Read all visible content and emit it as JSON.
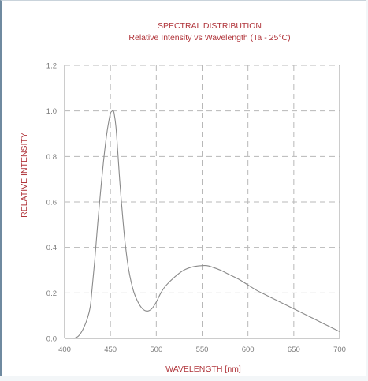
{
  "chart_data": {
    "type": "line",
    "title": "SPECTRAL DISTRIBUTION",
    "subtitle": "Relative Intensity vs Wavelength (Ta - 25°C)",
    "xlabel": "WAVELENGTH [nm]",
    "ylabel": "RELATIVE INTENSITY",
    "xlim": [
      400,
      700
    ],
    "ylim": [
      0,
      1.2
    ],
    "x_ticks": [
      "400",
      "450",
      "500",
      "550",
      "600",
      "650",
      "700"
    ],
    "y_ticks": [
      "0.0",
      "0.2",
      "0.4",
      "0.6",
      "0.8",
      "1.0",
      "1.2"
    ],
    "grid": true,
    "grid_style": "dashed",
    "colors": {
      "title": "#b0343a",
      "axis_label": "#b0343a",
      "tick_label": "#7a7a7a",
      "grid": "#b8b8b8",
      "line": "#8a8a8a",
      "frame_border": "#6f8aa0"
    },
    "series": [
      {
        "x": [
          410,
          415,
          420,
          425,
          428,
          430,
          433,
          436,
          440,
          443,
          446,
          448,
          450,
          452,
          453,
          454,
          456,
          458,
          460,
          463,
          466,
          470,
          475,
          480,
          485,
          490,
          495,
          500,
          505,
          510,
          520,
          530,
          540,
          550,
          555,
          560,
          570,
          580,
          590,
          600,
          610,
          620,
          630,
          640,
          650,
          660,
          670,
          680,
          690,
          700
        ],
        "y": [
          0.0,
          0.01,
          0.04,
          0.09,
          0.14,
          0.22,
          0.35,
          0.5,
          0.68,
          0.8,
          0.9,
          0.95,
          0.99,
          1.0,
          1.0,
          0.99,
          0.93,
          0.82,
          0.7,
          0.55,
          0.42,
          0.3,
          0.21,
          0.16,
          0.13,
          0.12,
          0.13,
          0.16,
          0.2,
          0.23,
          0.27,
          0.3,
          0.315,
          0.32,
          0.32,
          0.315,
          0.3,
          0.28,
          0.26,
          0.235,
          0.21,
          0.19,
          0.17,
          0.15,
          0.13,
          0.11,
          0.09,
          0.07,
          0.05,
          0.03
        ]
      }
    ]
  }
}
